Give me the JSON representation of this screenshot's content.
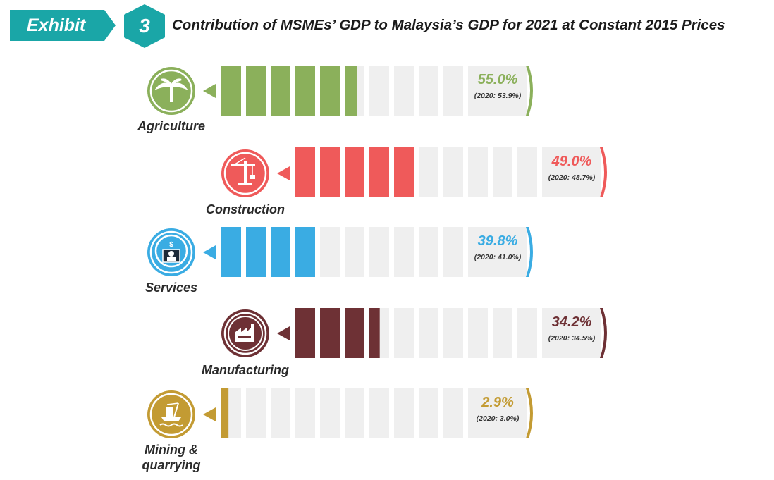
{
  "header": {
    "exhibit_label": "Exhibit",
    "exhibit_number": "3",
    "title": "Contribution of MSMEs’ GDP to Malaysia’s GDP for 2021 at Constant 2015 Prices"
  },
  "chart_data": {
    "type": "bar",
    "title": "Contribution of MSMEs’ GDP to Malaysia’s GDP for 2021 at Constant 2015 Prices",
    "xlim": [
      0,
      100
    ],
    "unit": "%",
    "categories": [
      "Agriculture",
      "Construction",
      "Services",
      "Manufacturing",
      "Mining & quarrying"
    ],
    "series": [
      {
        "name": "2021",
        "values": [
          55.0,
          49.0,
          39.8,
          34.2,
          2.9
        ]
      },
      {
        "name": "2020",
        "values": [
          53.9,
          48.7,
          41.0,
          34.5,
          3.0
        ]
      }
    ],
    "sectors": [
      {
        "name": "Agriculture",
        "label_lines": [
          "Agriculture"
        ],
        "value_text": "55.0%",
        "prev_text": "(2020: 53.9%)",
        "color": "#8bb05b",
        "icon": "palm-tree-icon"
      },
      {
        "name": "Construction",
        "label_lines": [
          "Construction"
        ],
        "value_text": "49.0%",
        "prev_text": "(2020: 48.7%)",
        "color": "#ef5a5a",
        "icon": "crane-icon"
      },
      {
        "name": "Services",
        "label_lines": [
          "Services"
        ],
        "value_text": "39.8%",
        "prev_text": "(2020: 41.0%)",
        "color": "#3aace3",
        "icon": "services-icon"
      },
      {
        "name": "Manufacturing",
        "label_lines": [
          "Manufacturing"
        ],
        "value_text": "34.2%",
        "prev_text": "(2020: 34.5%)",
        "color": "#6e3135",
        "icon": "factory-icon"
      },
      {
        "name": "Mining & quarrying",
        "label_lines": [
          "Mining &",
          "quarrying"
        ],
        "value_text": "2.9%",
        "prev_text": "(2020: 3.0%)",
        "color": "#c39b33",
        "icon": "oil-rig-icon"
      }
    ]
  }
}
